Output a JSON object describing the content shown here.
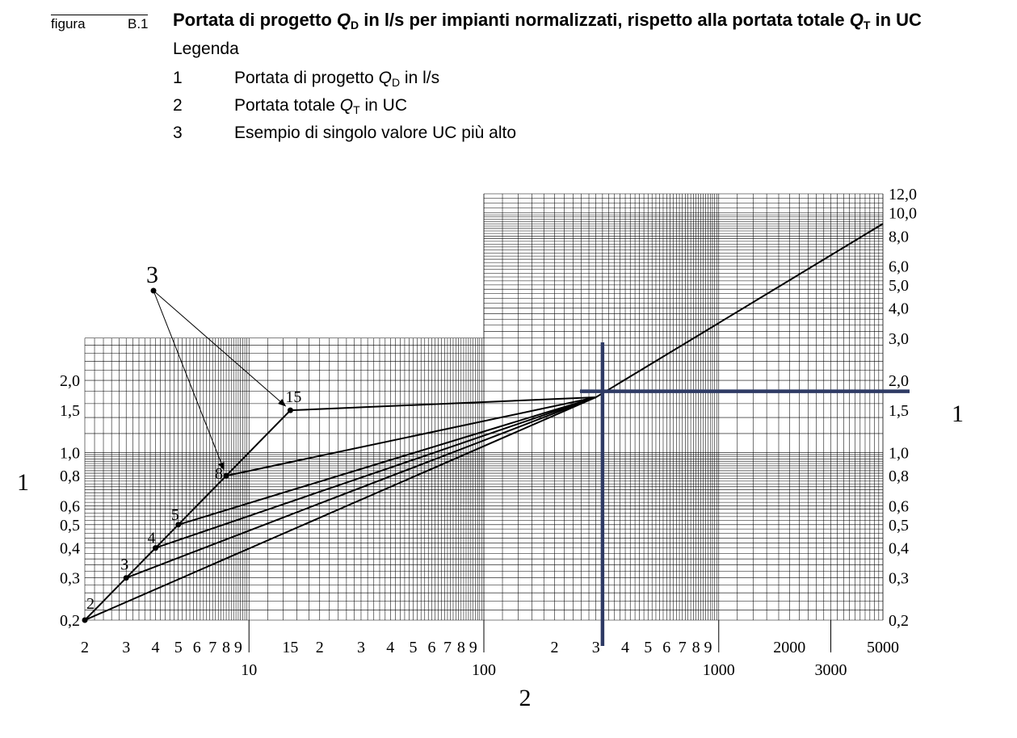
{
  "header": {
    "figure_word": "figura",
    "figure_number": "B.1",
    "title_pre": "Portata di progetto ",
    "title_qd": "Q",
    "title_qd_sub": "D",
    "title_mid": " in l/s per impianti normalizzati, rispetto alla portata totale ",
    "title_qt": "Q",
    "title_qt_sub": "T",
    "title_post": " in UC"
  },
  "legend": {
    "title": "Legenda",
    "items": [
      {
        "key": "1",
        "pre": "Portata di progetto ",
        "sym": "Q",
        "sub": "D",
        "post": " in l/s"
      },
      {
        "key": "2",
        "pre": "Portata totale ",
        "sym": "Q",
        "sub": "T",
        "post": " in UC"
      },
      {
        "key": "3",
        "pre": "Esempio di singolo valore UC più alto",
        "sym": "",
        "sub": "",
        "post": ""
      }
    ]
  },
  "chart_data": {
    "type": "line",
    "x_scale": "log",
    "y_scale": "log",
    "xlim": [
      2,
      5000
    ],
    "ylim": [
      0.2,
      12.0
    ],
    "x_axis_label": "2",
    "y_axis_label_left": "1",
    "y_axis_label_right": "1",
    "x_tick_labels_minor": [
      "2",
      "3",
      "4",
      "5",
      "6",
      "7",
      "8",
      "9",
      "15",
      "2",
      "3",
      "4",
      "5",
      "6",
      "7",
      "8",
      "9",
      "2",
      "3",
      "4",
      "5",
      "6",
      "7",
      "8",
      "9",
      "2000",
      "5000"
    ],
    "x_tick_labels_major": [
      "10",
      "100",
      "1000",
      "3000"
    ],
    "y_tick_labels_left": [
      "0,2",
      "0,3",
      "0,4",
      "0,5",
      "0,6",
      "0,8",
      "1,0",
      "1,5",
      "2,0"
    ],
    "y_tick_labels_right": [
      "0,2",
      "0,3",
      "0,4",
      "0,5",
      "0,6",
      "0,8",
      "1,0",
      "1,5",
      "2,0",
      "3,0",
      "4,0",
      "5,0",
      "6,0",
      "8,0",
      "10,0",
      "12,0"
    ],
    "grid": true,
    "series": [
      {
        "values": [
          [
            2,
            0.2
          ],
          [
            2.5,
            0.25
          ],
          [
            3,
            0.3
          ],
          [
            4,
            0.4
          ],
          [
            5,
            0.5
          ],
          [
            8,
            0.8
          ],
          [
            15,
            1.5
          ]
        ]
      },
      {
        "values": [
          [
            15,
            1.5
          ],
          [
            300,
            1.7
          ]
        ]
      },
      {
        "values": [
          [
            8,
            0.8
          ],
          [
            300,
            1.7
          ]
        ]
      },
      {
        "values": [
          [
            5,
            0.5
          ],
          [
            300,
            1.7
          ]
        ]
      },
      {
        "values": [
          [
            4,
            0.4
          ],
          [
            300,
            1.7
          ]
        ]
      },
      {
        "values": [
          [
            3,
            0.3
          ],
          [
            300,
            1.7
          ]
        ]
      },
      {
        "values": [
          [
            2,
            0.2
          ],
          [
            300,
            1.7
          ]
        ]
      },
      {
        "values": [
          [
            300,
            1.7
          ],
          [
            5000,
            9.0
          ]
        ]
      }
    ],
    "point_labels": [
      {
        "label": "2",
        "x": 2,
        "y": 0.2
      },
      {
        "label": "3",
        "x": 3,
        "y": 0.3
      },
      {
        "label": "4",
        "x": 4,
        "y": 0.4
      },
      {
        "label": "5",
        "x": 5,
        "y": 0.5
      },
      {
        "label": "8",
        "x": 8,
        "y": 0.8
      },
      {
        "label": "15",
        "x": 15,
        "y": 1.5
      }
    ],
    "annotation": {
      "label": "3",
      "points_to": [
        [
          8,
          0.8
        ],
        [
          15,
          1.5
        ]
      ]
    },
    "highlight": {
      "x": 320,
      "y": 1.8,
      "color": "#2e3a64"
    }
  }
}
